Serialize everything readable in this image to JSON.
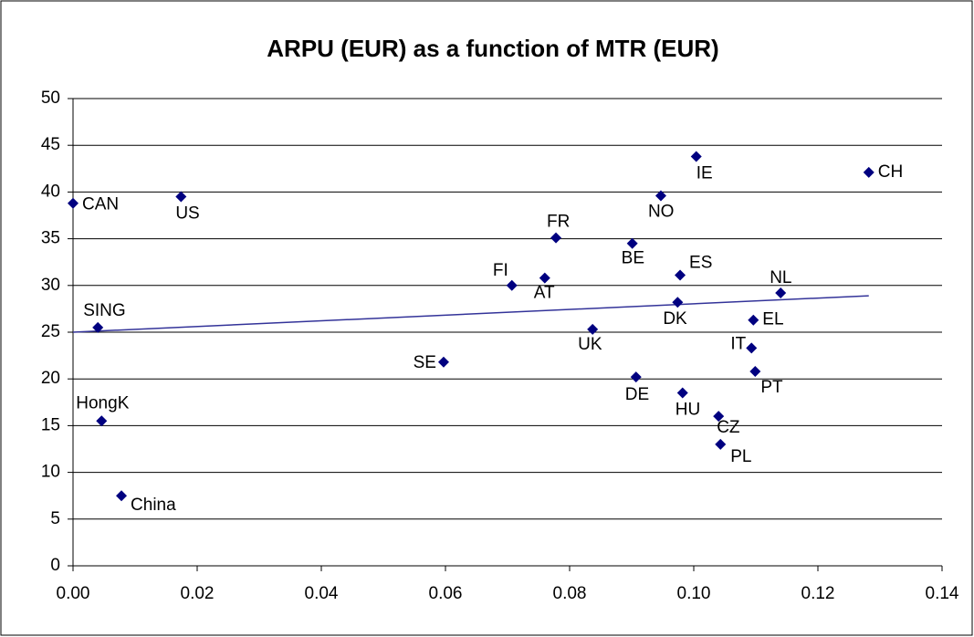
{
  "chart_data": {
    "type": "scatter",
    "title": "ARPU (EUR) as a function of MTR (EUR)",
    "labels": [
      "CAN",
      "US",
      "SING",
      "HongK",
      "China",
      "SE",
      "FI",
      "AT",
      "FR",
      "UK",
      "BE",
      "DE",
      "NO",
      "ES",
      "DK",
      "HU",
      "IE",
      "CZ",
      "PL",
      "IT",
      "EL",
      "PT",
      "NL",
      "CH"
    ],
    "x": [
      0.0,
      0.0174,
      0.004,
      0.0046,
      0.0078,
      0.0597,
      0.0707,
      0.076,
      0.0778,
      0.0837,
      0.0901,
      0.0907,
      0.0947,
      0.0978,
      0.0974,
      0.0982,
      0.1004,
      0.104,
      0.1043,
      0.1093,
      0.1096,
      0.1099,
      0.114,
      0.1282
    ],
    "values": [
      38.8,
      39.5,
      25.5,
      15.5,
      7.5,
      21.8,
      30.0,
      30.8,
      35.1,
      25.3,
      34.5,
      20.2,
      39.6,
      31.1,
      28.2,
      18.5,
      43.8,
      16.0,
      13.0,
      23.3,
      26.3,
      20.8,
      29.2,
      42.1
    ],
    "color": "#000080",
    "trendline": {
      "x": [
        0,
        0.1282
      ],
      "values": [
        25.0,
        28.9
      ],
      "color": "#333399"
    },
    "xlim": [
      0,
      0.14
    ],
    "xticks": [
      {
        "value": 0,
        "label": "0.00"
      },
      {
        "value": 0.02,
        "label": "0.02"
      },
      {
        "value": 0.04,
        "label": "0.04"
      },
      {
        "value": 0.06,
        "label": "0.06"
      },
      {
        "value": 0.08,
        "label": "0.08"
      },
      {
        "value": 0.1,
        "label": "0.10"
      },
      {
        "value": 0.12,
        "label": "0.12"
      },
      {
        "value": 0.14,
        "label": "0.14"
      }
    ],
    "ylim": [
      0,
      50
    ],
    "yticks": [
      0,
      5,
      10,
      15,
      20,
      25,
      30,
      35,
      40,
      45,
      50
    ],
    "grid": true
  }
}
